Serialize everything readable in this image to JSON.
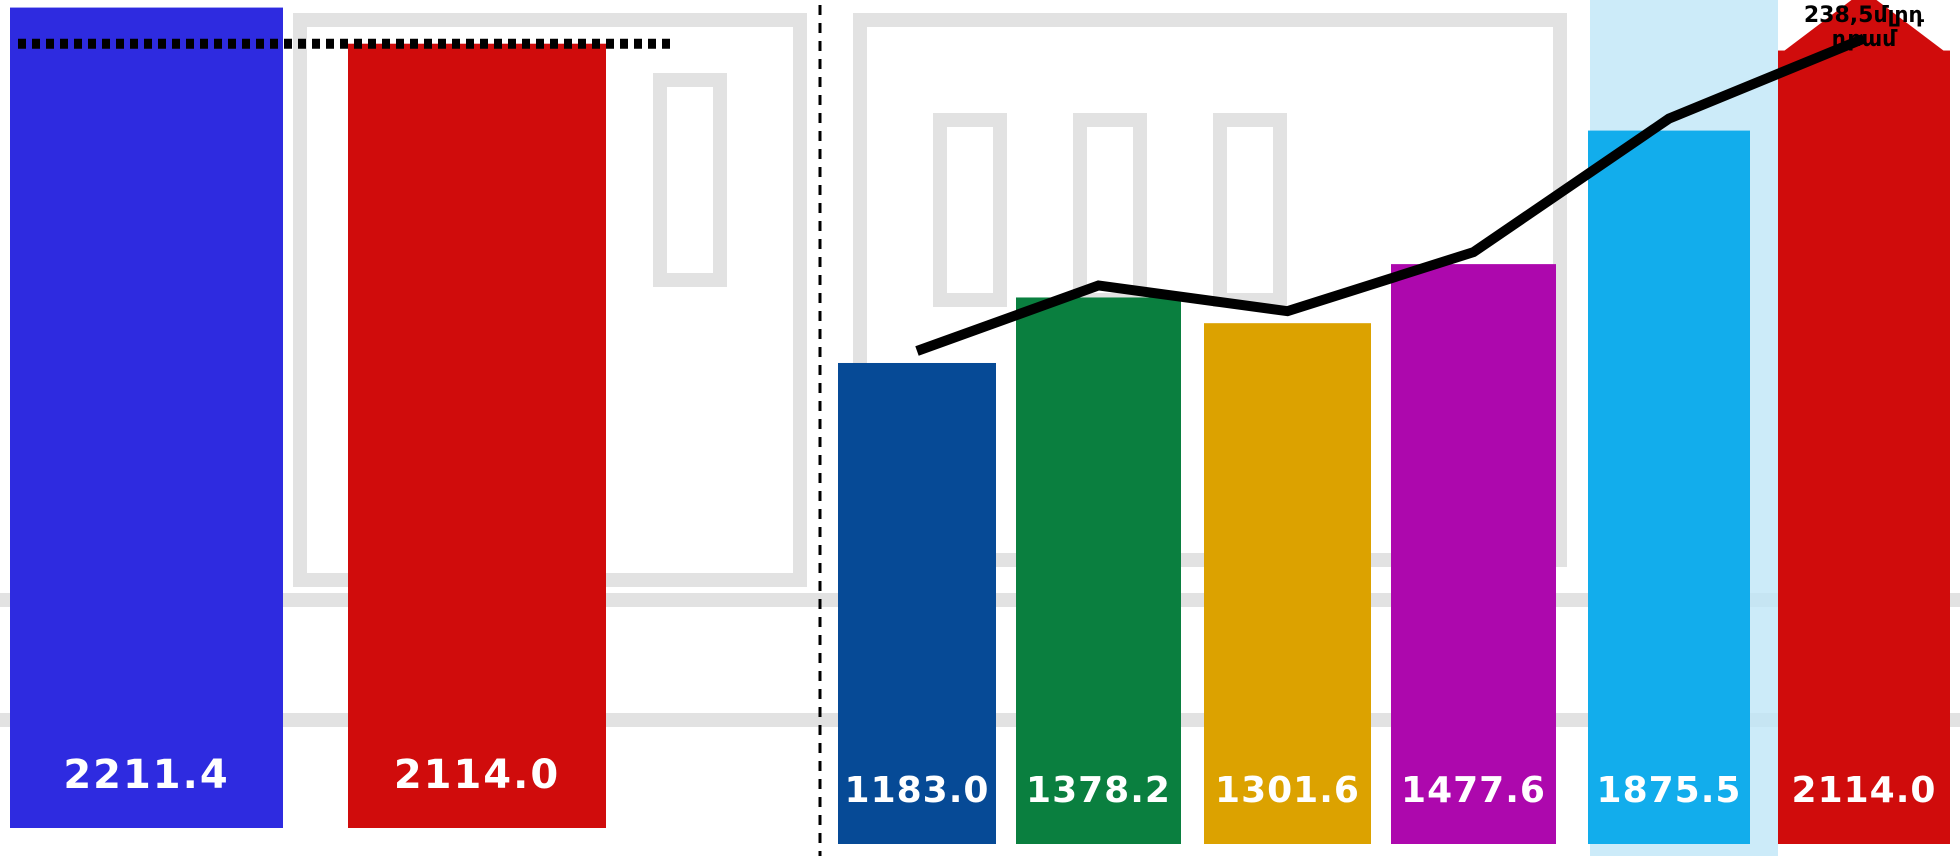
{
  "chart_data": [
    {
      "type": "bar",
      "values": [
        2211.4,
        2114.0
      ],
      "value_labels": [
        "2211.4",
        "2114.0"
      ],
      "colors": [
        "#2e2be0",
        "#d00c0c"
      ],
      "reference_line": true
    },
    {
      "type": "bar",
      "values": [
        1183.0,
        1378.2,
        1301.6,
        1477.6,
        1875.5,
        2114.0
      ],
      "value_labels": [
        "1183.0",
        "1378.2",
        "1301.6",
        "1477.6",
        "1875.5",
        "2114.0"
      ],
      "colors": [
        "#064a96",
        "#0a7f3f",
        "#dca200",
        "#ad08ad",
        "#12adec",
        "#d00c0c"
      ],
      "line_color": "#000000",
      "annotation": [
        "238,5մլրդ",
        "դրամ"
      ]
    }
  ]
}
